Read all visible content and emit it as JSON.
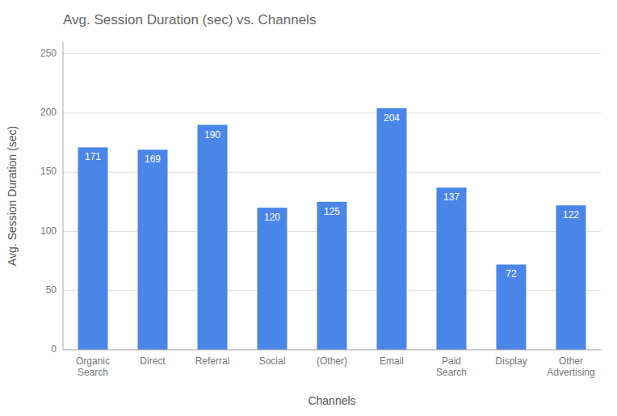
{
  "chart_data": {
    "type": "bar",
    "title": "Avg. Session Duration (sec) vs. Channels",
    "x_label": "Channels",
    "y_label": "Avg. Session Duration (sec)",
    "categories": [
      "Organic\nSearch",
      "Direct",
      "Referral",
      "Social",
      "(Other)",
      "Email",
      "Paid\nSearch",
      "Display",
      "Other\nAdvertising"
    ],
    "values": [
      171,
      169,
      190,
      120,
      125,
      204,
      137,
      72,
      122
    ],
    "color": "#4a86e8",
    "ylim": [
      0,
      260
    ],
    "yticks": [
      0,
      50,
      100,
      150,
      200,
      250
    ],
    "grid": true,
    "data_labels": true
  }
}
